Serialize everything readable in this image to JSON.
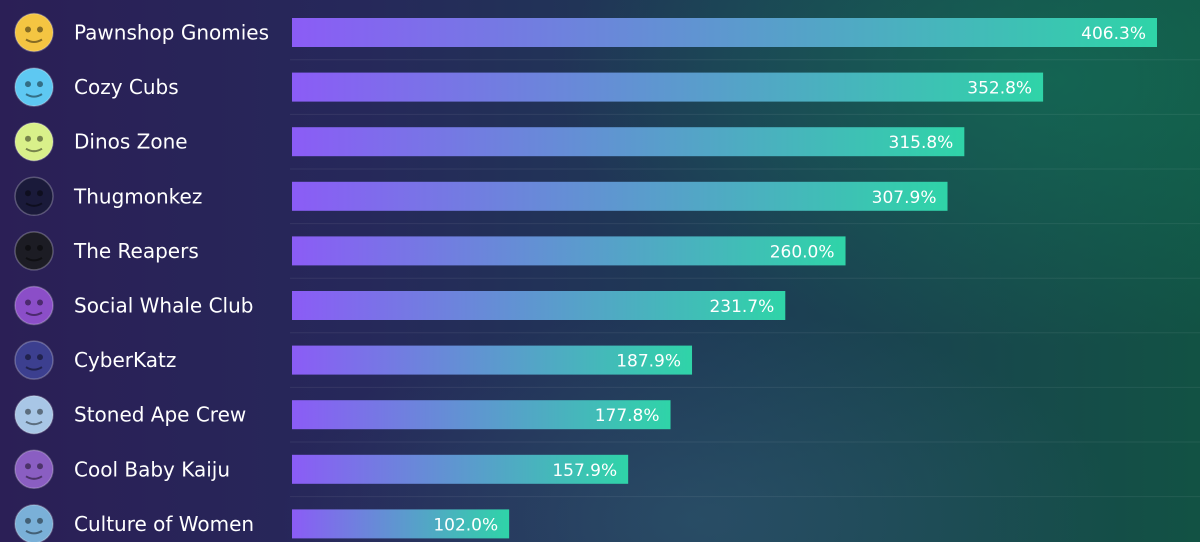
{
  "chart_data": {
    "type": "bar",
    "orientation": "horizontal",
    "title": "",
    "xlabel": "",
    "ylabel": "",
    "unit": "%",
    "xlim": [
      0,
      406.3
    ],
    "grid": false,
    "legend": "none",
    "categories": [
      "Pawnshop Gnomies",
      "Cozy Cubs",
      "Dinos Zone",
      "Thugmonkez",
      "The Reapers",
      "Social Whale Club",
      "CyberKatz",
      "Stoned Ape Crew",
      "Cool Baby Kaiju",
      "Culture of Women"
    ],
    "values": [
      406.3,
      352.8,
      315.8,
      307.9,
      260.0,
      231.7,
      187.9,
      177.8,
      157.9,
      102.0
    ],
    "value_labels": [
      "406.3%",
      "352.8%",
      "315.8%",
      "307.9%",
      "260.0%",
      "231.7%",
      "187.9%",
      "177.8%",
      "157.9%",
      "102.0%"
    ],
    "avatar_colors": [
      "#f4c542",
      "#5ec8f2",
      "#d9f08a",
      "#1a1a3a",
      "#1c1c24",
      "#8b4ec8",
      "#3c3f8f",
      "#a8c6e6",
      "#8a5ec2",
      "#7ab0d8"
    ],
    "bar_gradient": [
      "#8b5cf6",
      "#2fd4a8"
    ]
  }
}
